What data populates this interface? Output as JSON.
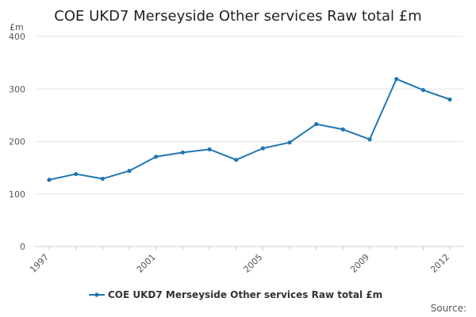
{
  "chart_data": {
    "type": "line",
    "title": "COE UKD7 Merseyside Other services Raw total £m",
    "unit_label": "£m",
    "x": [
      1997,
      1998,
      1999,
      2000,
      2001,
      2002,
      2003,
      2004,
      2005,
      2006,
      2007,
      2008,
      2009,
      2010,
      2011,
      2012
    ],
    "x_tick_labels": [
      "1997",
      "2001",
      "2005",
      "2009",
      "2012"
    ],
    "y_ticks": [
      0,
      100,
      200,
      300,
      400
    ],
    "ylim": [
      0,
      400
    ],
    "grid": true,
    "series": [
      {
        "name": "COE UKD7 Merseyside Other services Raw total £m",
        "color": "#1f77b4",
        "values": [
          127,
          138,
          129,
          144,
          171,
          179,
          185,
          165,
          187,
          198,
          233,
          223,
          204,
          319,
          298,
          280
        ]
      }
    ],
    "legend_position": "bottom-center",
    "source_label": "Source:"
  }
}
